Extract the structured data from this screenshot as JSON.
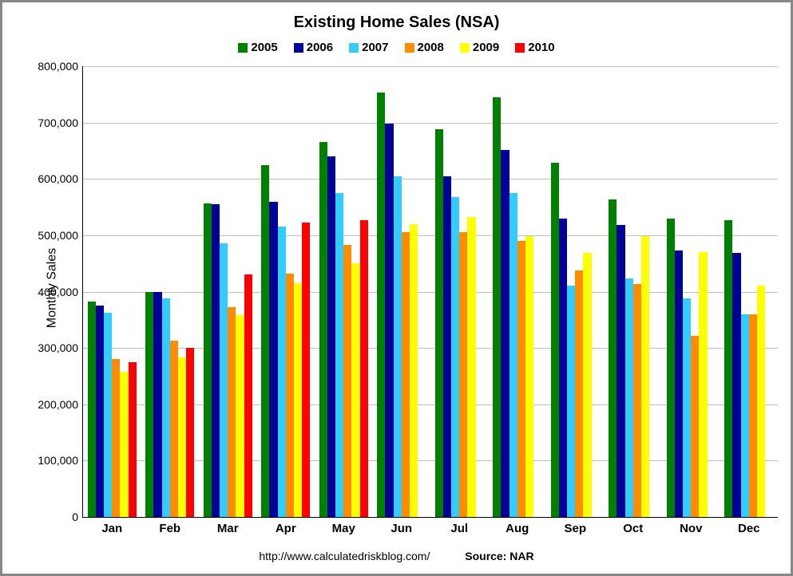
{
  "chart": {
    "type": "bar",
    "title": "Existing Home Sales (NSA)",
    "title_fontsize": 20,
    "ylabel": "Monthly Sales",
    "label_fontsize": 16,
    "background_color": "#ffffff",
    "grid_color": "#c0c0c0",
    "border_color": "#888888",
    "categories": [
      "Jan",
      "Feb",
      "Mar",
      "Apr",
      "May",
      "Jun",
      "Jul",
      "Aug",
      "Sep",
      "Oct",
      "Nov",
      "Dec"
    ],
    "ylim": [
      0,
      800000
    ],
    "ytick_step": 100000,
    "ytick_labels": [
      "0",
      "100,000",
      "200,000",
      "300,000",
      "400,000",
      "500,000",
      "600,000",
      "700,000",
      "800,000"
    ],
    "bar_width": 0.85,
    "series": [
      {
        "name": "2005",
        "color": "#008000",
        "values": [
          383000,
          400000,
          557000,
          625000,
          665000,
          753000,
          688000,
          745000,
          629000,
          564000,
          530000,
          527000
        ]
      },
      {
        "name": "2006",
        "color": "#000099",
        "values": [
          375000,
          400000,
          555000,
          560000,
          640000,
          698000,
          605000,
          652000,
          529000,
          518000,
          473000,
          468000
        ]
      },
      {
        "name": "2007",
        "color": "#33ccff",
        "values": [
          363000,
          388000,
          485000,
          515000,
          575000,
          605000,
          568000,
          575000,
          410000,
          423000,
          388000,
          360000
        ]
      },
      {
        "name": "2008",
        "color": "#ff8c00",
        "values": [
          280000,
          313000,
          373000,
          432000,
          483000,
          505000,
          505000,
          490000,
          438000,
          413000,
          321000,
          360000
        ]
      },
      {
        "name": "2009",
        "color": "#ffff00",
        "values": [
          258000,
          283000,
          358000,
          415000,
          450000,
          520000,
          532000,
          498000,
          468000,
          498000,
          470000,
          411000
        ]
      },
      {
        "name": "2010",
        "color": "#ff0000",
        "values": [
          275000,
          300000,
          430000,
          522000,
          527000,
          null,
          null,
          null,
          null,
          null,
          null,
          null
        ]
      }
    ],
    "footer_left": "http://www.calculatedriskblog.com/",
    "footer_right": "Source: NAR"
  }
}
